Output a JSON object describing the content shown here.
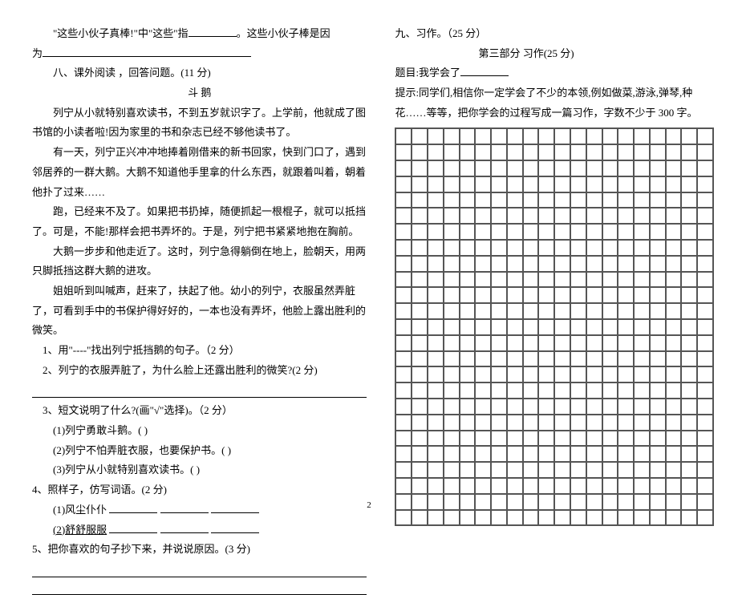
{
  "left": {
    "intro_line": "\"这些小伙子真棒!\"中\"这些\"指",
    "intro_line2": "。这些小伙子棒是因",
    "intro_line3": "为",
    "section8": "八、课外阅读 ，回答问题。(11 分)",
    "title": "斗  鹅",
    "para1": "列宁从小就特别喜欢读书，不到五岁就识字了。上学前，他就成了图书馆的小读者啦!因为家里的书和杂志已经不够他读书了。",
    "para2": "有一天，列宁正兴冲冲地捧着刚借来的新书回家，快到门口了，遇到邻居养的一群大鹅。大鹅不知道他手里拿的什么东西，就跟着叫着，朝着他扑了过来……",
    "para3": "跑，已经来不及了。如果把书扔掉，随便抓起一根棍子，就可以抵挡了。可是，不能!那样会把书弄坏的。于是，列宁把书紧紧地抱在胸前。",
    "para4": "大鹅一步步和他走近了。这时，列宁急得躺倒在地上，脸朝天，用两只脚抵挡这群大鹅的进攻。",
    "para5": "姐姐听到叫喊声，赶来了，扶起了他。幼小的列宁，衣服虽然弄脏了，可看到手中的书保护得好好的，一本也没有弄坏，他脸上露出胜利的微笑。",
    "q1": "1、用\"----\"找出列宁抵挡鹅的句子。（2 分）",
    "q2": "2、列宁的衣服弄脏了，为什么脸上还露出胜利的微笑?(2 分)",
    "q3": "3、短文说明了什么?(画\"√\"选择)。（2 分）",
    "q3a": "(1)列宁勇敢斗鹅。(       )",
    "q3b": "(2)列宁不怕弄脏衣服，也要保护书。(       )",
    "q3c": "(3)列宁从小就特别喜欢读书。(       )",
    "q4": "4、照样子，仿写词语。(2 分)",
    "q4a": "(1)风尘仆仆",
    "q4b_u": "(2)舒舒服服",
    "q5": "5、把你喜欢的句子抄下来，并说说原因。(3 分)"
  },
  "right": {
    "section9": "九、习作。（25 分）",
    "part3": "第三部分  习作(25 分)",
    "topic_label": "题目:我学会了",
    "hint": "提示:同学们,相信你一定学会了不少的本领,例如做菜,游泳,弹琴,种花……等等，把你学会的过程写成一篇习作，字数不少于 300 字。"
  },
  "page_number": "2"
}
